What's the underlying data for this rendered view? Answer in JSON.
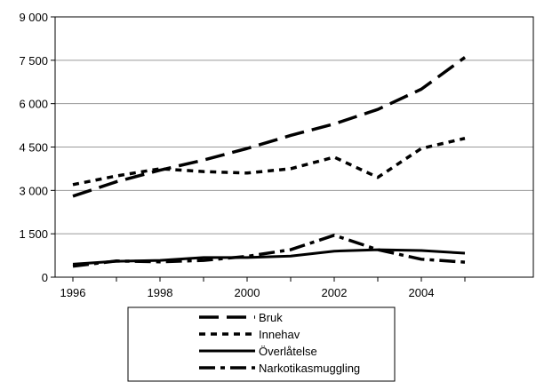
{
  "chart_data": {
    "type": "line",
    "title": "",
    "xlabel": "",
    "ylabel": "",
    "x": [
      1996,
      1997,
      1998,
      1999,
      2000,
      2001,
      2002,
      2003,
      2004,
      2005
    ],
    "x_tick_labels": [
      "1996",
      "1998",
      "2000",
      "2002",
      "2004"
    ],
    "y_tick_labels": [
      "0",
      "1 500",
      "3 000",
      "4 500",
      "6 000",
      "7 500",
      "9 000"
    ],
    "ylim": [
      0,
      9000
    ],
    "grid": "horizontal",
    "legend_position": "bottom",
    "series": [
      {
        "name": "Bruk",
        "style": "long-dash",
        "values": [
          2800,
          3300,
          3700,
          4050,
          4450,
          4900,
          5300,
          5800,
          6500,
          7600
        ]
      },
      {
        "name": "Innehav",
        "style": "dotted",
        "values": [
          3200,
          3500,
          3750,
          3650,
          3600,
          3750,
          4150,
          3450,
          4450,
          4800
        ]
      },
      {
        "name": "Överlåtelse",
        "style": "solid",
        "values": [
          450,
          550,
          580,
          680,
          680,
          730,
          900,
          950,
          920,
          830
        ]
      },
      {
        "name": "Narkotikasmuggling",
        "style": "dash-dot",
        "values": [
          380,
          560,
          530,
          580,
          720,
          950,
          1450,
          950,
          620,
          520
        ]
      }
    ]
  }
}
